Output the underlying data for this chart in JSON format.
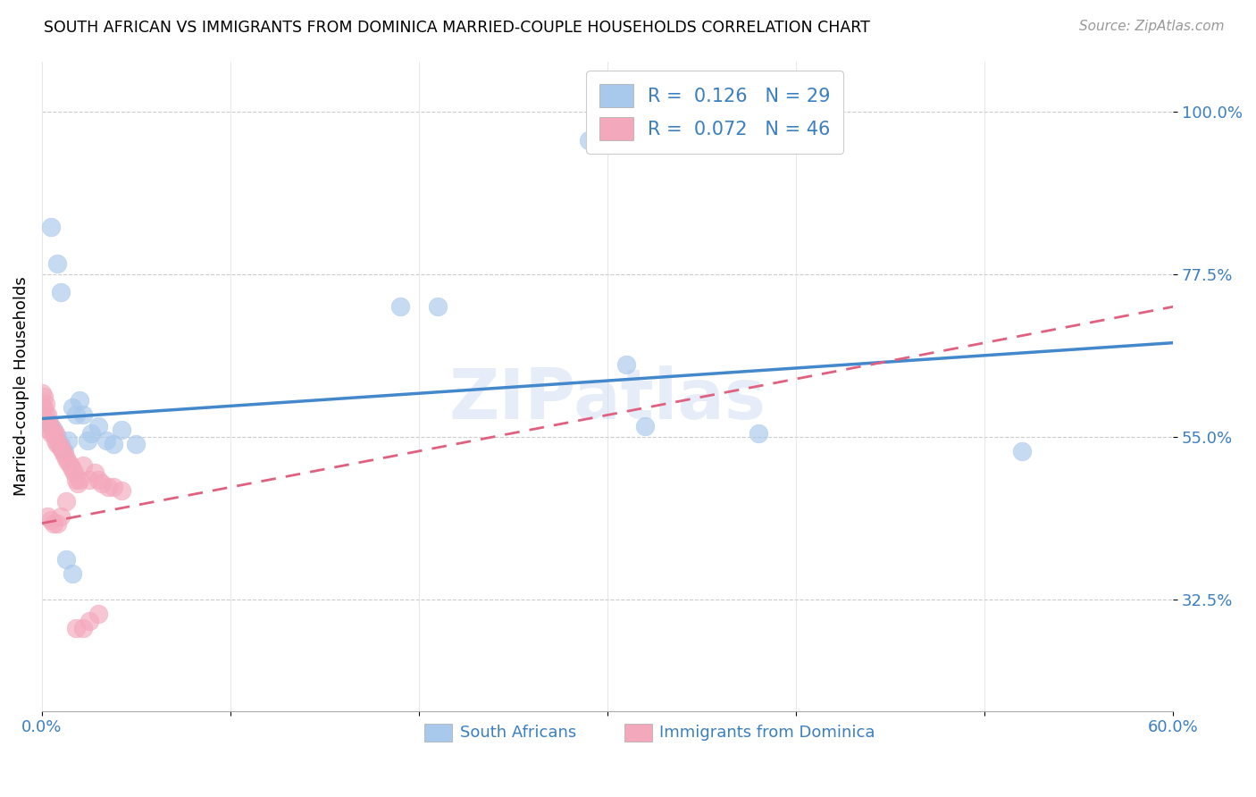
{
  "title": "SOUTH AFRICAN VS IMMIGRANTS FROM DOMINICA MARRIED-COUPLE HOUSEHOLDS CORRELATION CHART",
  "source": "Source: ZipAtlas.com",
  "ylabel_label": "Married-couple Households",
  "xlim": [
    0.0,
    0.6
  ],
  "ylim": [
    0.17,
    1.07
  ],
  "yticks": [
    0.325,
    0.55,
    0.775,
    1.0
  ],
  "yticklabels": [
    "32.5%",
    "55.0%",
    "77.5%",
    "100.0%"
  ],
  "xtick_positions": [
    0.0,
    0.1,
    0.2,
    0.3,
    0.4,
    0.5,
    0.6
  ],
  "xticklabels": [
    "0.0%",
    "",
    "",
    "",
    "",
    "",
    "60.0%"
  ],
  "blue_color": "#a8c8ec",
  "pink_color": "#f4a8bc",
  "blue_line_color": "#4488cc",
  "pink_line_color": "#e06080",
  "legend_R1": "0.126",
  "legend_N1": "29",
  "legend_R2": "0.072",
  "legend_N2": "46",
  "watermark": "ZIPatlas",
  "blue_x": [
    0.004,
    0.006,
    0.008,
    0.01,
    0.012,
    0.014,
    0.016,
    0.018,
    0.02,
    0.022,
    0.024,
    0.026,
    0.03,
    0.034,
    0.038,
    0.042,
    0.05,
    0.19,
    0.21,
    0.31,
    0.32,
    0.38,
    0.52,
    0.005,
    0.008,
    0.01,
    0.013,
    0.016,
    0.29
  ],
  "blue_y": [
    0.57,
    0.56,
    0.55,
    0.54,
    0.53,
    0.545,
    0.59,
    0.58,
    0.6,
    0.58,
    0.545,
    0.555,
    0.565,
    0.545,
    0.54,
    0.56,
    0.54,
    0.73,
    0.73,
    0.65,
    0.565,
    0.555,
    0.53,
    0.84,
    0.79,
    0.75,
    0.38,
    0.36,
    0.96
  ],
  "pink_x": [
    0.0,
    0.0,
    0.0,
    0.001,
    0.001,
    0.002,
    0.002,
    0.003,
    0.003,
    0.004,
    0.005,
    0.005,
    0.006,
    0.007,
    0.007,
    0.008,
    0.009,
    0.01,
    0.011,
    0.012,
    0.013,
    0.014,
    0.015,
    0.016,
    0.017,
    0.018,
    0.019,
    0.02,
    0.022,
    0.025,
    0.028,
    0.03,
    0.032,
    0.035,
    0.038,
    0.042,
    0.003,
    0.005,
    0.006,
    0.008,
    0.01,
    0.013,
    0.018,
    0.022,
    0.025,
    0.03
  ],
  "pink_y": [
    0.57,
    0.59,
    0.61,
    0.59,
    0.605,
    0.58,
    0.595,
    0.57,
    0.58,
    0.56,
    0.565,
    0.555,
    0.555,
    0.545,
    0.555,
    0.54,
    0.54,
    0.535,
    0.53,
    0.525,
    0.52,
    0.515,
    0.51,
    0.505,
    0.5,
    0.49,
    0.485,
    0.49,
    0.51,
    0.49,
    0.5,
    0.49,
    0.485,
    0.48,
    0.48,
    0.475,
    0.44,
    0.435,
    0.43,
    0.43,
    0.44,
    0.46,
    0.285,
    0.285,
    0.295,
    0.305
  ],
  "blue_line_x0": 0.0,
  "blue_line_x1": 0.6,
  "blue_line_y0": 0.575,
  "blue_line_y1": 0.68,
  "pink_line_x0": 0.0,
  "pink_line_x1": 0.6,
  "pink_line_y0": 0.43,
  "pink_line_y1": 0.73
}
